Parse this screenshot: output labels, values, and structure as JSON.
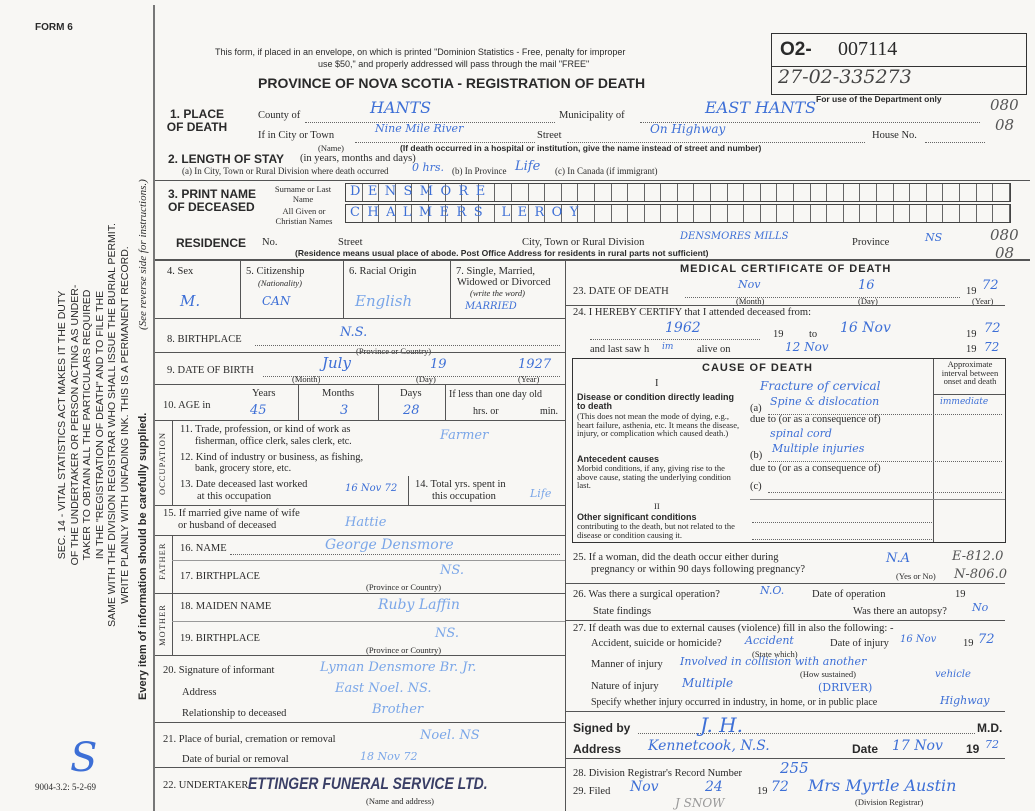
{
  "margin": {
    "form_label": "FORM 6",
    "sec14": [
      "SEC. 14 - VITAL STATISTICS ACT MAKES IT THE DUTY",
      "OF THE UNDERTAKER OR PERSON ACTING AS UNDER-",
      "TAKER TO OBTAIN ALL THE PARTICULARS REQUIRED",
      "IN THE \"REGISTRATION OF DEATH\" AND TO FILE THE",
      "SAME WITH THE DIVISION REGISTRAR WHO SHALL ISSUE THE BURIAL PERMIT.",
      "WRITE PLAINLY WITH UNFADING INK. THIS IS A PERMANENT RECORD."
    ],
    "every_item": "Every item of information should be carefully supplied.",
    "see_reverse": "(See reverse side for instructions.)",
    "footer_code": "9004-3.2: 5-2-69"
  },
  "header": {
    "notice1": "This form, if placed in an envelope, on which is printed \"Dominion Statistics - Free, penalty for improper",
    "notice2": "use $50,\" and properly addressed will pass through the mail \"FREE\"",
    "title": "PROVINCE OF NOVA SCOTIA - REGISTRATION OF DEATH",
    "reg_prefix": "O2-",
    "reg_number": "007114",
    "reg_number2": "27-02-335273",
    "dept_only": "For use of the Department only",
    "codes": [
      "080",
      "08",
      "080",
      "08"
    ]
  },
  "q1": {
    "label": "1. PLACE OF DEATH",
    "county_label": "County of",
    "county": "HANTS",
    "municipality_label": "Municipality of",
    "municipality": "EAST HANTS",
    "city_label": "If in City or Town",
    "city": "Nine Mile River",
    "name_note": "(Name)",
    "street_label": "Street",
    "street": "On Highway",
    "house_label": "House No.",
    "hospital_note": "(If death occurred in a hospital or institution, give the name instead of street and number)"
  },
  "q2": {
    "label": "2. LENGTH OF STAY",
    "sub": "(in years, months and days)",
    "a_label": "(a) In City, Town or Rural Division where death occurred",
    "a": "0 hrs.",
    "b_label": "(b) In Province",
    "b": "Life",
    "c_label": "(c) In Canada (if immigrant)"
  },
  "q3": {
    "label": "3. PRINT NAME OF DECEASED",
    "surname_label": "Surname or Last Name",
    "surname": "DENSMORE",
    "given_label": "All Given or Christian Names",
    "given": "CHALMERS   LEROY"
  },
  "residence": {
    "label": "RESIDENCE",
    "no_label": "No.",
    "street_label": "Street",
    "city_label": "City, Town or Rural Division",
    "city": "DENSMORES MILLS",
    "province_label": "Province",
    "province": "NS",
    "note": "(Residence means usual place of abode. Post Office Address for residents in rural parts not sufficient)"
  },
  "q4": {
    "label": "4. Sex",
    "value": "M."
  },
  "q5": {
    "label": "5. Citizenship",
    "sub": "(Nationality)",
    "value": "CAN"
  },
  "q6": {
    "label": "6. Racial Origin",
    "value": "English"
  },
  "q7": {
    "label1": "7. Single, Married,",
    "label2": "Widowed or Divorced",
    "sub": "(write the word)",
    "value": "MARRIED"
  },
  "q8": {
    "label": "8. BIRTHPLACE",
    "value": "N.S.",
    "note": "(Province or Country)"
  },
  "q9": {
    "label": "9. DATE OF BIRTH",
    "month": "July",
    "day": "19",
    "year": "1927",
    "month_note": "(Month)",
    "day_note": "(Day)",
    "year_note": "(Year)"
  },
  "q10": {
    "label": "10. AGE in",
    "years_label": "Years",
    "years": "45",
    "months_label": "Months",
    "months": "3",
    "days_label": "Days",
    "days": "28",
    "less_label": "If less than one day old",
    "hrs_label": "hrs. or",
    "min_label": "min."
  },
  "occupation": {
    "side": "OCCUPATION",
    "q11a": "11. Trade, profession, or kind of work as",
    "q11b": "fisherman, office clerk, sales clerk, etc.",
    "q11": "Farmer",
    "q12a": "12. Kind of industry or business, as fishing,",
    "q12b": "bank, grocery store, etc.",
    "q13a": "13. Date deceased last worked",
    "q13b": "at this occupation",
    "q13": "16 Nov 72",
    "q14a": "14. Total yrs. spent in",
    "q14b": "this occupation",
    "q14": "Life"
  },
  "q15": {
    "label1": "15. If married give name of wife",
    "label2": "or husband of deceased",
    "value": "Hattie"
  },
  "father": {
    "side": "FATHER",
    "name_label": "16. NAME",
    "name": "George Densmore",
    "birth_label": "17. BIRTHPLACE",
    "birth": "NS.",
    "note": "(Province or Country)"
  },
  "mother": {
    "side": "MOTHER",
    "name_label": "18. MAIDEN NAME",
    "name": "Ruby Laffin",
    "birth_label": "19. BIRTHPLACE",
    "birth": "NS.",
    "note": "(Province or Country)"
  },
  "q20": {
    "label": "20. Signature of informant",
    "value": "Lyman Densmore Br. Jr.",
    "address_label": "Address",
    "address": "East Noel. NS.",
    "rel_label": "Relationship to deceased",
    "rel": "Brother"
  },
  "q21": {
    "label": "21. Place of burial, cremation or removal",
    "value": "Noel. NS",
    "date_label": "Date of burial or removal",
    "date": "18 Nov 72"
  },
  "q22": {
    "label": "22. UNDERTAKER",
    "value": "ETTINGER FUNERAL SERVICE LTD.",
    "note": "(Name and address)"
  },
  "medical": {
    "title": "MEDICAL CERTIFICATE OF DEATH",
    "q23": {
      "label": "23. DATE OF DEATH",
      "month": "Nov",
      "day": "16",
      "year": "72",
      "prefix": "19",
      "month_note": "(Month)",
      "day_note": "(Day)",
      "year_note": "(Year)"
    },
    "q24": {
      "label": "24. I HEREBY CERTIFY that I attended deceased from:",
      "from": "1962",
      "to_label": "to",
      "to": "16 Nov",
      "to_year": "72",
      "last_label": "and last saw h",
      "last_him": "im",
      "alive_label": "alive on",
      "last": "12 Nov",
      "last_year": "72",
      "prefix": "19"
    },
    "cause": {
      "title": "CAUSE OF DEATH",
      "interval": "Approximate interval between onset and death",
      "roman1": "I",
      "direct_label": "Disease or condition directly leading to death",
      "direct_desc": "(This does not mean the mode of dying, e.g., heart failure, asthenia, etc. It means the disease, injury, or complication which caused death.)",
      "a_label": "(a)",
      "a_line1": "Fracture of cervical",
      "a": "Spine & dislocation",
      "a_interval": "immediate",
      "due1": "due to (or as a consequence of)",
      "a_line3": "spinal cord",
      "antecedent_label": "Antecedent causes",
      "antecedent_desc": "Morbid conditions, if any, giving rise to the above cause, stating the underlying condition last.",
      "b_label": "(b)",
      "b": "Multiple injuries",
      "due2": "due to (or as a consequence of)",
      "c_label": "(c)",
      "roman2": "II",
      "other_label": "Other significant conditions",
      "other_desc": "contributing to the death, but not related to the disease or condition causing it."
    }
  },
  "q25": {
    "label1": "25. If a woman, did the death occur either during",
    "label2": "pregnancy or within 90 days following pregnancy?",
    "value": "N.A",
    "note": "(Yes or No)",
    "code1": "E-812.0",
    "code2": "N-806.0"
  },
  "q26": {
    "label": "26. Was there a surgical operation?",
    "value": "N.O.",
    "date_label": "Date of operation",
    "prefix": "19",
    "findings_label": "State findings",
    "autopsy_label": "Was there an autopsy?",
    "autopsy": "No"
  },
  "q27": {
    "label": "27. If death was due to external causes (violence) fill in also the following: -",
    "acc_label": "Accident, suicide or homicide?",
    "acc": "Accident",
    "state_note": "(State which)",
    "date_label": "Date of injury",
    "date": "16 Nov",
    "prefix": "19",
    "year": "72",
    "manner_label": "Manner of injury",
    "manner": "Involved in collision with another",
    "how_note": "(How sustained)",
    "vehicle": "vehicle",
    "nature_label": "Nature of injury",
    "nature": "Multiple",
    "driver": "(DRIVER)",
    "where_label": "Specify whether injury occurred in industry, in home, or in public place",
    "where": "Highway"
  },
  "signed": {
    "label": "Signed by",
    "md": "M.D.",
    "address_label": "Address",
    "address": "Kennetcook, N.S.",
    "date_label": "Date",
    "date": "17 Nov",
    "prefix": "19",
    "year": "72"
  },
  "q28": {
    "label": "28. Division Registrar's Record Number",
    "value": "255"
  },
  "q29": {
    "label": "29. Filed",
    "month": "Nov",
    "day": "24",
    "prefix": "19",
    "year": "72",
    "registrar": "Mrs Myrtle Austin",
    "note": "(Division Registrar)",
    "extra": "J SNOW"
  }
}
